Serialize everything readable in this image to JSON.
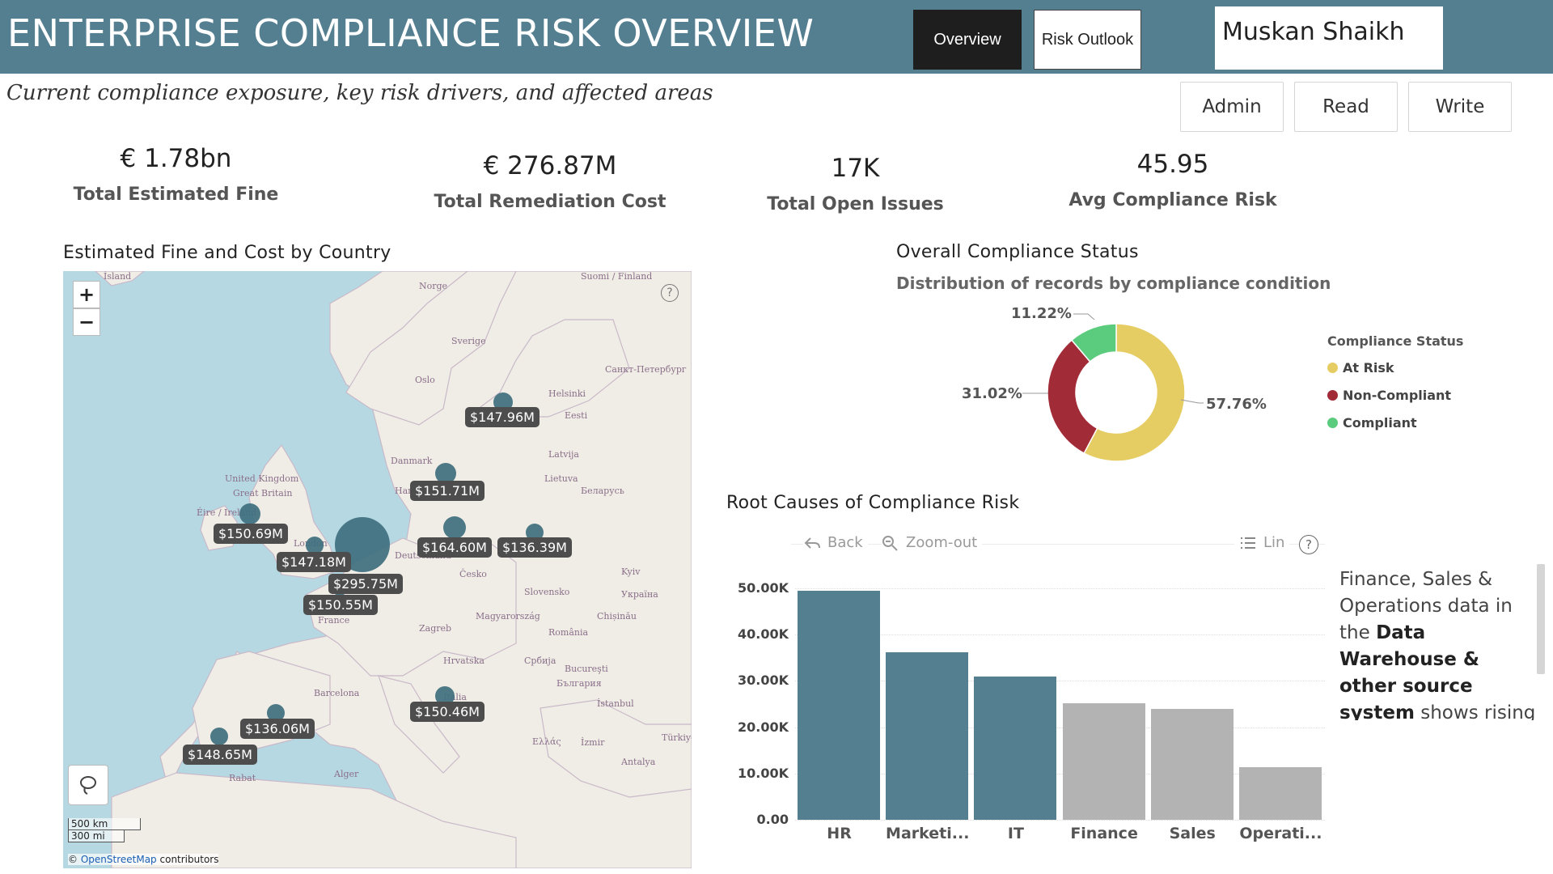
{
  "header": {
    "title": "ENTERPRISE COMPLIANCE RISK OVERVIEW",
    "nav": [
      "Overview",
      "Risk Outlook"
    ],
    "user": "Muskan Shaikh"
  },
  "subtitle": "Current compliance exposure, key risk drivers, and affected areas",
  "roles": [
    "Admin",
    "Read",
    "Write"
  ],
  "kpis": [
    {
      "value": "€ 1.78bn",
      "label": "Total Estimated Fine"
    },
    {
      "value": "€ 276.87M",
      "label": "Total Remediation Cost"
    },
    {
      "value": "17K",
      "label": "Total Open Issues"
    },
    {
      "value": "45.95",
      "label": "Avg Compliance Risk"
    }
  ],
  "map": {
    "title": "Estimated Fine and Cost by Country",
    "zoom_in": "+",
    "zoom_out": "−",
    "help": "?",
    "scale_km": "500 km",
    "scale_mi": "300 mi",
    "attribution_prefix": "©",
    "attribution_link": "OpenStreetMap",
    "attribution_suffix": "contributors",
    "place_names": [
      "Ísland",
      "Norge",
      "Suomi / Finland",
      "Sverige",
      "Oslo",
      "Санкт-Петербург",
      "Helsinki",
      "Eesti",
      "Latvija",
      "Danmark",
      "Lietuva",
      "Hamburg",
      "Беларусь",
      "United Kingdom",
      "Great Britain",
      "Éire / Ireland",
      "London",
      "Deutschland",
      "Česko",
      "Kyiv",
      "Slovensko",
      "Україна",
      "Magyarország",
      "Chișinău",
      "Zagreb",
      "România",
      "France",
      "Hrvatska",
      "Србија",
      "Bucureşti",
      "България",
      "Barcelona",
      "Italia",
      "İstanbul",
      "Ελλάς",
      "İzmir",
      "Türkiye",
      "Antalya",
      "Alger",
      "Rabat"
    ],
    "labels": [
      "$147.96M",
      "$151.71M",
      "$150.69M",
      "$164.60M",
      "$136.39M",
      "$147.18M",
      "$295.75M",
      "$150.55M",
      "$150.46M",
      "$136.06M",
      "$148.65M"
    ]
  },
  "donut": {
    "title": "Overall Compliance Status",
    "subtitle": "Distribution of records by compliance condition",
    "legend_title": "Compliance Status",
    "labels": [
      "57.76%",
      "31.02%",
      "11.22%"
    ]
  },
  "bar": {
    "title": "Root Causes of Compliance Risk",
    "toolbar": {
      "back": "Back",
      "zoom": "Zoom-out",
      "lin": "Lin",
      "help": "?"
    },
    "yticks": [
      "0.00",
      "10.00K",
      "20.00K",
      "30.00K",
      "40.00K",
      "50.00K"
    ]
  },
  "note": {
    "part1": "Finance, Sales & Operations data in the",
    "bold": "Data Warehouse & other source system",
    "part2": "shows rising compliance risk and"
  },
  "colors": {
    "header": "#547f90",
    "teal": "#547f90",
    "gray": "#b3b3b3",
    "at_risk": "#e6cd63",
    "non_compliant": "#a22b38",
    "compliant": "#5bcc7d"
  },
  "chart_data": [
    {
      "type": "pie",
      "title": "Overall Compliance Status",
      "subtitle": "Distribution of records by compliance condition",
      "categories": [
        "At Risk",
        "Non-Compliant",
        "Compliant"
      ],
      "values": [
        57.76,
        31.02,
        11.22
      ],
      "colors": [
        "#e6cd63",
        "#a22b38",
        "#5bcc7d"
      ],
      "legend": "right"
    },
    {
      "type": "bar",
      "title": "Root Causes of Compliance Risk",
      "categories": [
        "HR",
        "Marketi...",
        "IT",
        "Finance",
        "Sales",
        "Operati..."
      ],
      "values": [
        49500,
        36200,
        30900,
        25200,
        23900,
        11300
      ],
      "colors": [
        "#547f90",
        "#547f90",
        "#547f90",
        "#b3b3b3",
        "#b3b3b3",
        "#b3b3b3"
      ],
      "ylim": [
        0,
        50000
      ],
      "grid": true
    }
  ]
}
